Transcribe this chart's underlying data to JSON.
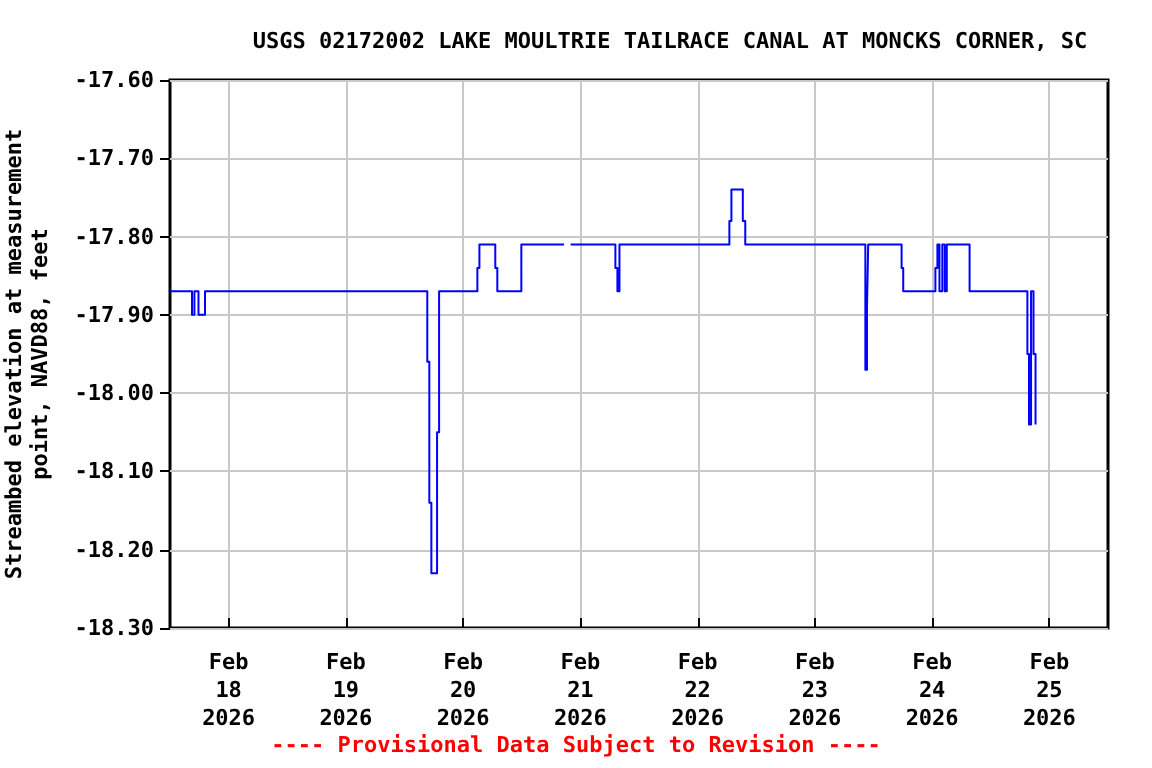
{
  "chart_data": {
    "type": "step",
    "title": "USGS 02172002 LAKE MOULTRIE TAILRACE CANAL AT MONCKS CORNER, SC",
    "ylabel": "Streambed elevation at measurement\npoint, NAVD88, feet",
    "annotations": [
      "---- Provisional Data Subject to Revision ----"
    ],
    "x": [
      "2026-02-17T12:00",
      "2026-02-17T16:30",
      "2026-02-17T17:00",
      "2026-02-17T17:50",
      "2026-02-17T19:10",
      "2026-02-19T16:40",
      "2026-02-19T17:05",
      "2026-02-19T17:30",
      "2026-02-19T18:40",
      "2026-02-19T19:05",
      "2026-02-20T02:55",
      "2026-02-20T03:20",
      "2026-02-20T06:35",
      "2026-02-20T07:00",
      "2026-02-20T11:55",
      "2026-02-20T20:40",
      "2026-02-20T22:00",
      "2026-02-21T07:10",
      "2026-02-21T07:35",
      "2026-02-21T08:00",
      "2026-02-22T06:30",
      "2026-02-22T06:55",
      "2026-02-22T09:15",
      "2026-02-22T09:45",
      "2026-02-23T10:20",
      "2026-02-23T10:40",
      "2026-02-23T10:55",
      "2026-02-23T17:45",
      "2026-02-23T18:05",
      "2026-02-24T00:40",
      "2026-02-24T01:05",
      "2026-02-24T01:30",
      "2026-02-24T02:05",
      "2026-02-24T02:35",
      "2026-02-24T03:00",
      "2026-02-24T07:40",
      "2026-02-24T19:30",
      "2026-02-24T19:50",
      "2026-02-24T20:15",
      "2026-02-24T20:45",
      "2026-02-24T21:10"
    ],
    "series": [
      {
        "color": "#0000ff",
        "values": [
          -17.87,
          -17.9,
          -17.87,
          -17.9,
          -17.87,
          -17.96,
          -18.14,
          -18.23,
          -18.05,
          -17.87,
          -17.84,
          -17.81,
          -17.84,
          -17.87,
          -17.81,
          null,
          -17.81,
          -17.84,
          -17.87,
          -17.81,
          -17.78,
          -17.74,
          -17.78,
          -17.81,
          -17.97,
          -17.89,
          -17.81,
          -17.84,
          -17.87,
          -17.84,
          -17.81,
          -17.87,
          -17.81,
          -17.87,
          -17.81,
          -17.87,
          -17.95,
          -18.04,
          -17.87,
          -17.95,
          -18.04
        ]
      }
    ],
    "xlim": [
      "2026-02-17T12:00",
      "2026-02-25T12:00"
    ],
    "xticks": [
      {
        "value": "2026-02-18",
        "label": "Feb\n18\n2026"
      },
      {
        "value": "2026-02-19",
        "label": "Feb\n19\n2026"
      },
      {
        "value": "2026-02-20",
        "label": "Feb\n20\n2026"
      },
      {
        "value": "2026-02-21",
        "label": "Feb\n21\n2026"
      },
      {
        "value": "2026-02-22",
        "label": "Feb\n22\n2026"
      },
      {
        "value": "2026-02-23",
        "label": "Feb\n23\n2026"
      },
      {
        "value": "2026-02-24",
        "label": "Feb\n24\n2026"
      },
      {
        "value": "2026-02-25",
        "label": "Feb\n25\n2026"
      }
    ],
    "ylim": [
      -18.3,
      -17.6
    ],
    "yticks": [
      {
        "value": -18.3,
        "label": "-18.30"
      },
      {
        "value": -18.2,
        "label": "-18.20"
      },
      {
        "value": -18.1,
        "label": "-18.10"
      },
      {
        "value": -18.0,
        "label": "-18.00"
      },
      {
        "value": -17.9,
        "label": "-17.90"
      },
      {
        "value": -17.8,
        "label": "-17.80"
      },
      {
        "value": -17.7,
        "label": "-17.70"
      },
      {
        "value": -17.6,
        "label": "-17.60"
      }
    ],
    "grid": true,
    "marker": "none",
    "line_style": "solid"
  }
}
